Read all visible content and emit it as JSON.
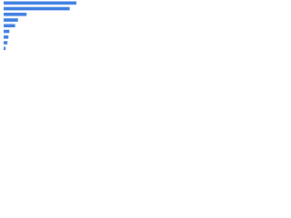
{
  "chart_data": {
    "type": "bar",
    "orientation": "horizontal",
    "categories": [
      null,
      null,
      null,
      null,
      null,
      null,
      null,
      null,
      null
    ],
    "values": [
      76,
      69,
      24,
      15,
      12,
      6,
      5,
      4,
      2
    ],
    "color": "#3d7ee0"
  }
}
